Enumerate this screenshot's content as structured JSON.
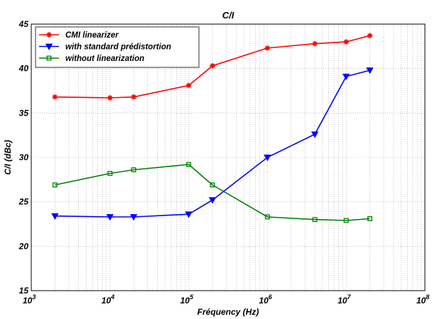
{
  "chart_data": {
    "type": "line",
    "title": "C/I",
    "xlabel": "Fréquency  (Hz)",
    "ylabel": "C/I (dBc)",
    "xscale": "log",
    "xlim": [
      1000,
      100000000
    ],
    "ylim": [
      15,
      45
    ],
    "grid": true,
    "legend_position": "top-left",
    "x_tick_base": "10",
    "x_tick_exponents": [
      "3",
      "4",
      "5",
      "6",
      "7",
      "8"
    ],
    "y_ticks": [
      15,
      20,
      25,
      30,
      35,
      40,
      45
    ],
    "x": [
      2000,
      10000,
      20000,
      100000,
      200000,
      1000000,
      4000000,
      10000000,
      20000000
    ],
    "series": [
      {
        "name": "CMI linearizer",
        "color": "#ff0000",
        "marker": "star",
        "values": [
          36.8,
          36.7,
          36.8,
          38.1,
          40.3,
          42.3,
          42.8,
          43.0,
          43.7
        ]
      },
      {
        "name": "with standard prédistortion",
        "color": "#0000ff",
        "marker": "triangle-down",
        "values": [
          23.4,
          23.3,
          23.3,
          23.6,
          25.2,
          30.0,
          32.6,
          39.1,
          39.8
        ]
      },
      {
        "name": "without linearization",
        "color": "#008000",
        "marker": "square",
        "values": [
          26.9,
          28.2,
          28.6,
          29.2,
          26.9,
          23.3,
          23.0,
          22.9,
          23.1
        ]
      }
    ]
  }
}
